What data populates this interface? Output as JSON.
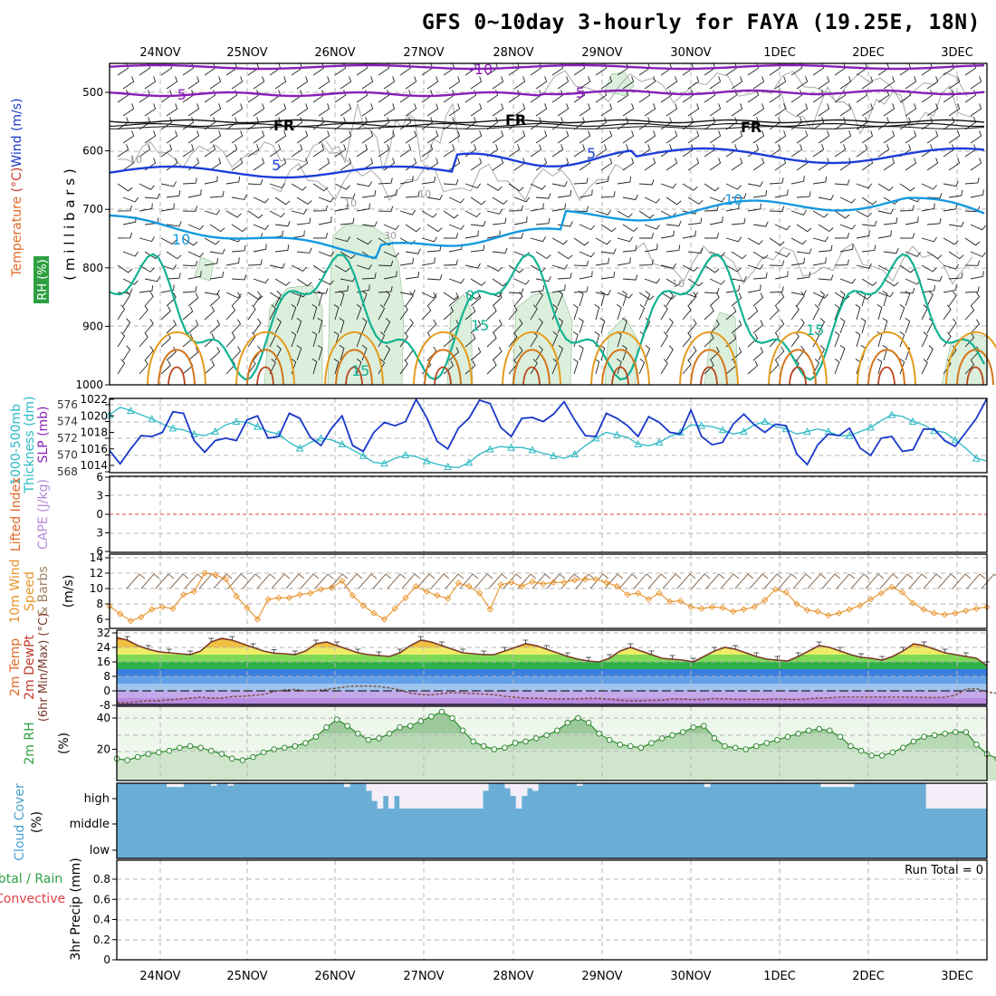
{
  "title": "GFS 0~10day 3-hourly for FAYA (19.25E, 18N)",
  "dates": [
    "24NOV",
    "25NOV",
    "26NOV",
    "27NOV",
    "28NOV",
    "29NOV",
    "30NOV",
    "1DEC",
    "2DEC",
    "3DEC"
  ],
  "colors": {
    "frame": "#000000",
    "grid": "#b4b4b4",
    "purple": "#8a1fb8",
    "blue": "#1c3ed8",
    "cyan": "#1499df",
    "teal": "#13b294",
    "orange": "#e59b1b",
    "rhfill": "#dcefdc",
    "slp": "#1838c8",
    "thk": "#2cb9c4",
    "wind10": "#e8922a",
    "cloud": "#6aaed6",
    "cloudclear": "#f3eef8"
  },
  "chart_data": [
    {
      "type": "line",
      "panel": "upper-air",
      "ylabel_parts": [
        "RH (%)",
        "Temperature",
        "(°C)",
        "Wind",
        "(m/s)",
        "(",
        "m i l l i b a r s",
        ")"
      ],
      "yticks": [
        500,
        600,
        700,
        800,
        900,
        1000
      ],
      "ylim": [
        1000,
        450
      ],
      "contour_labels": [
        "-10",
        "-5",
        "-5",
        "FR",
        "FR",
        "FR",
        "10",
        "5",
        "5",
        "10",
        "10",
        "10",
        "10",
        "-10",
        "30",
        "10",
        "0",
        "15",
        "15",
        "15"
      ]
    },
    {
      "type": "line",
      "panel": "slp-thickness",
      "ylabel_left": [
        "1000-500mb",
        "Thickness (dm)"
      ],
      "ylabel_right": "SLP (mb)",
      "yticks_left": [
        568,
        570,
        572,
        574,
        576
      ],
      "yticks_right": [
        1014,
        1016,
        1018,
        1020,
        1022
      ],
      "series": [
        {
          "name": "SLP (mb)",
          "values": [
            1015.8,
            1014.2,
            1016.0,
            1017.6,
            1017.5,
            1018.0,
            1020.5,
            1020.3,
            1017.0,
            1015.6,
            1017.0,
            1017.3,
            1017.0,
            1019.5,
            1020.0,
            1017.3,
            1017.5,
            1020.3,
            1019.7,
            1017.4,
            1016.4,
            1018.5,
            1020.0,
            1016.4,
            1015.7,
            1018.0,
            1019.2,
            1018.8,
            1019.3,
            1022.0,
            1019.8,
            1016.9,
            1016.0,
            1018.5,
            1019.7,
            1021.9,
            1021.5,
            1018.6,
            1017.5,
            1019.7,
            1019.8,
            1019.3,
            1020.2,
            1021.7,
            1019.5,
            1017.6,
            1017.5,
            1020.3,
            1019.7,
            1018.8,
            1017.5,
            1019.9,
            1019.2,
            1018.0,
            1017.8,
            1020.7,
            1017.5,
            1016.5,
            1016.8,
            1019.0,
            1020.2,
            1018.9,
            1018.0,
            1019.0,
            1018.8,
            1015.4,
            1014.1,
            1016.5,
            1017.8,
            1017.6,
            1018.5,
            1016.1,
            1015.2,
            1017.3,
            1017.5,
            1015.7,
            1015.9,
            1018.4,
            1018.4,
            1017.0,
            1016.3,
            1018.0,
            1019.7,
            1022.1
          ]
        },
        {
          "name": "1000-500mb Thickness (dm)",
          "values": [
            574.8,
            575.7,
            575.3,
            574.8,
            574.3,
            573.7,
            573.2,
            573.0,
            572.5,
            572.3,
            572.8,
            573.6,
            574.0,
            573.9,
            573.4,
            572.8,
            572.5,
            571.5,
            570.8,
            571.5,
            572.0,
            571.8,
            571.3,
            570.6,
            569.9,
            569.1,
            569.0,
            569.6,
            570.0,
            569.8,
            569.3,
            568.9,
            568.6,
            568.5,
            569.1,
            570.1,
            570.7,
            571.0,
            570.9,
            570.9,
            570.6,
            570.2,
            569.9,
            569.6,
            570.1,
            571.1,
            572.0,
            572.7,
            572.4,
            572.1,
            571.3,
            571.1,
            571.5,
            572.2,
            572.7,
            573.6,
            573.5,
            573.4,
            573.0,
            572.5,
            572.8,
            573.6,
            574.0,
            573.4,
            573.1,
            572.5,
            572.8,
            573.1,
            572.8,
            572.3,
            572.3,
            572.8,
            573.3,
            574.1,
            574.8,
            574.6,
            574.0,
            573.6,
            572.9,
            572.7,
            571.8,
            570.8,
            569.6,
            569.3
          ]
        }
      ]
    },
    {
      "type": "line",
      "panel": "stability",
      "ylabel_left": "Lifted Index",
      "ylabel_right": "CAPE (J/kg)",
      "yticks": [
        -6,
        -3,
        0,
        3,
        6
      ],
      "ytick_labels": [
        "6",
        "3",
        "0",
        "3",
        "6"
      ],
      "ylim": [
        6,
        -6
      ]
    },
    {
      "type": "line",
      "panel": "10m-wind",
      "ylabel_parts": [
        "10m Wind",
        "Speed",
        "& Barbs",
        "(m/s)"
      ],
      "yticks": [
        6,
        8,
        10,
        12,
        14
      ],
      "ylim": [
        5,
        15
      ],
      "series": [
        {
          "name": "10m Wind Speed",
          "values": [
            7.7,
            6.7,
            5.8,
            6.3,
            7.3,
            7.6,
            7.4,
            9.2,
            9.6,
            12.0,
            11.8,
            11.2,
            9.0,
            7.5,
            6.0,
            8.6,
            8.8,
            8.8,
            9.2,
            9.4,
            9.9,
            10.1,
            11.0,
            9.1,
            7.8,
            6.8,
            6.0,
            7.4,
            8.8,
            10.3,
            9.6,
            9.1,
            8.7,
            10.7,
            10.3,
            9.4,
            7.3,
            10.5,
            10.8,
            10.3,
            10.9,
            10.6,
            10.8,
            10.8,
            11.1,
            11.2,
            11.2,
            10.8,
            10.3,
            9.2,
            9.4,
            8.6,
            9.4,
            8.3,
            8.4,
            7.6,
            7.4,
            7.6,
            7.5,
            7.0,
            7.3,
            7.6,
            8.5,
            9.9,
            9.5,
            8.0,
            7.2,
            7.0,
            6.5,
            6.8,
            7.3,
            7.8,
            8.6,
            9.4,
            10.2,
            9.5,
            8.1,
            7.3,
            6.8,
            6.6,
            6.8,
            7.1,
            7.4,
            7.6
          ]
        }
      ]
    },
    {
      "type": "area",
      "panel": "2m-temp",
      "ylabel_parts": [
        "2m Temp",
        "2m DewPt",
        "(6hr Min/Max) (°C)"
      ],
      "yticks": [
        -8,
        0,
        8,
        16,
        24,
        32
      ],
      "ytick_labels": [
        "-8",
        "0",
        "8",
        "16",
        "24",
        "32"
      ],
      "ylim": [
        -9,
        33
      ],
      "series": [
        {
          "name": "2m Temp",
          "values": [
            29.5,
            28,
            25,
            23,
            21.6,
            21,
            20.5,
            20,
            22,
            27,
            29,
            28,
            26,
            24,
            22,
            20.8,
            20.5,
            20,
            22,
            26,
            27,
            25,
            23,
            21,
            20,
            19.5,
            19,
            21,
            25,
            28,
            27,
            25,
            23,
            21,
            20.5,
            20,
            20,
            22,
            24,
            26,
            25,
            23,
            21,
            19,
            17.5,
            16.5,
            16,
            18,
            22,
            24,
            22,
            20,
            18,
            17.5,
            17,
            16,
            19,
            22,
            24,
            23,
            21,
            19,
            17.5,
            17,
            16.5,
            19,
            22,
            25,
            24,
            22,
            20,
            18.5,
            18,
            17,
            19,
            22,
            26,
            25,
            23,
            21,
            20,
            19,
            18,
            14
          ]
        },
        {
          "name": "2m DewPt",
          "values": [
            -6.5,
            -6.5,
            -6,
            -5.5,
            -5.5,
            -5,
            -4.5,
            -4,
            -3.5,
            -4,
            -4,
            -3.2,
            -3,
            -2.5,
            -2,
            -0.4,
            0.5,
            0.8,
            0,
            0.2,
            0.8,
            1.5,
            2.4,
            2.6,
            2.7,
            2.4,
            1.6,
            0.6,
            -1.3,
            -2,
            -2.3,
            -1.5,
            -1,
            -1.2,
            -1.5,
            -1.8,
            -2.1,
            -3,
            -3.5,
            -4,
            -4,
            -4.3,
            -4.5,
            -4.4,
            -4.4,
            -4.1,
            -4.2,
            -4.6,
            -5.2,
            -5.5,
            -5.5,
            -5.2,
            -5.2,
            -4.4,
            -4.6,
            -4.8,
            -4.8,
            -4.2,
            -4.4,
            -4.7,
            -4.7,
            -4.7,
            -4.7,
            -4.5,
            -4.7,
            -4.8,
            -4.4,
            -3.9,
            -3.8,
            -3.4,
            -3.4,
            -3.4,
            -3.4,
            -3.4,
            -3.4,
            -3.4,
            -3.5,
            -3.6,
            -3.7,
            -3.5,
            -2.4,
            1.0,
            1.2,
            -0.5,
            -1.5
          ]
        }
      ]
    },
    {
      "type": "area",
      "panel": "2m-rh",
      "ylabel_left": "2m RH",
      "ylabel_unit": "(%)",
      "yticks": [
        20,
        40
      ],
      "ylim": [
        0,
        44
      ],
      "series": [
        {
          "name": "2m RH",
          "values": [
            14,
            13,
            15,
            17,
            18,
            19,
            21,
            22,
            21,
            19,
            17,
            14,
            13,
            15,
            18,
            20,
            21,
            22,
            24,
            28,
            34,
            39,
            35,
            30,
            26,
            27,
            30,
            34,
            35,
            38,
            41,
            44,
            40,
            32,
            25,
            22,
            20,
            21,
            24,
            25,
            27,
            29,
            32,
            37,
            40,
            37,
            30,
            26,
            23,
            22,
            21,
            24,
            27,
            29,
            31,
            34,
            35,
            27,
            22,
            21,
            20,
            22,
            24,
            26,
            28,
            30,
            32,
            33,
            32,
            28,
            22,
            19,
            16,
            16,
            18,
            21,
            25,
            28,
            29,
            30,
            31,
            31,
            23,
            17,
            14,
            14
          ]
        }
      ]
    },
    {
      "type": "area",
      "panel": "cloud-cover",
      "ylabel_left": "Cloud Cover",
      "ylabel_unit": "(%)",
      "ytick_labels": [
        "high",
        "middle",
        "low"
      ],
      "series": [
        {
          "name": "high cloud clear fraction",
          "values": [
            0,
            0,
            0,
            0,
            0,
            0,
            0,
            0,
            0,
            0.15,
            0.15,
            0.15,
            0,
            0,
            0,
            0,
            0,
            0.1,
            0,
            0,
            0.1,
            0,
            0,
            0,
            0,
            0,
            0,
            0,
            0,
            0,
            0,
            0,
            0,
            0,
            0,
            0,
            0,
            0,
            0,
            0,
            0,
            0.15,
            0,
            0,
            0,
            0.3,
            0.7,
            1,
            0.5,
            1,
            0.5,
            1,
            1,
            1,
            1,
            1,
            1,
            1,
            1,
            1,
            1,
            1,
            1,
            1,
            1,
            1,
            0.3,
            0,
            0,
            0,
            0.2,
            0.5,
            1,
            0.5,
            0.2,
            0.3,
            0,
            0,
            0,
            0,
            0,
            0,
            0,
            0.1,
            0,
            0,
            0,
            0,
            0,
            0,
            0,
            0,
            0,
            0,
            0,
            0,
            0,
            0,
            0,
            0,
            0,
            0,
            0,
            0,
            0,
            0,
            0.15,
            0,
            0,
            0,
            0,
            0,
            0,
            0,
            0,
            0,
            0,
            0,
            0,
            0,
            0,
            0,
            0,
            0,
            0,
            0,
            0,
            0.15,
            0.15,
            0.15,
            0.15,
            0.15,
            0.15,
            0,
            0,
            0,
            0,
            0,
            0,
            0,
            0,
            0,
            0,
            0,
            0,
            0,
            1,
            1,
            1,
            1,
            1,
            1,
            1,
            1,
            1,
            1,
            1
          ]
        }
      ]
    },
    {
      "type": "bar",
      "panel": "precip",
      "ylabel_parts": [
        "Total / Rain",
        "Convective",
        "3hr Precip (mm)"
      ],
      "yticks": [
        0,
        0.2,
        0.4,
        0.6,
        0.8
      ],
      "ylim": [
        0,
        0.95
      ],
      "annotation": "Run Total = 0",
      "series": []
    }
  ]
}
